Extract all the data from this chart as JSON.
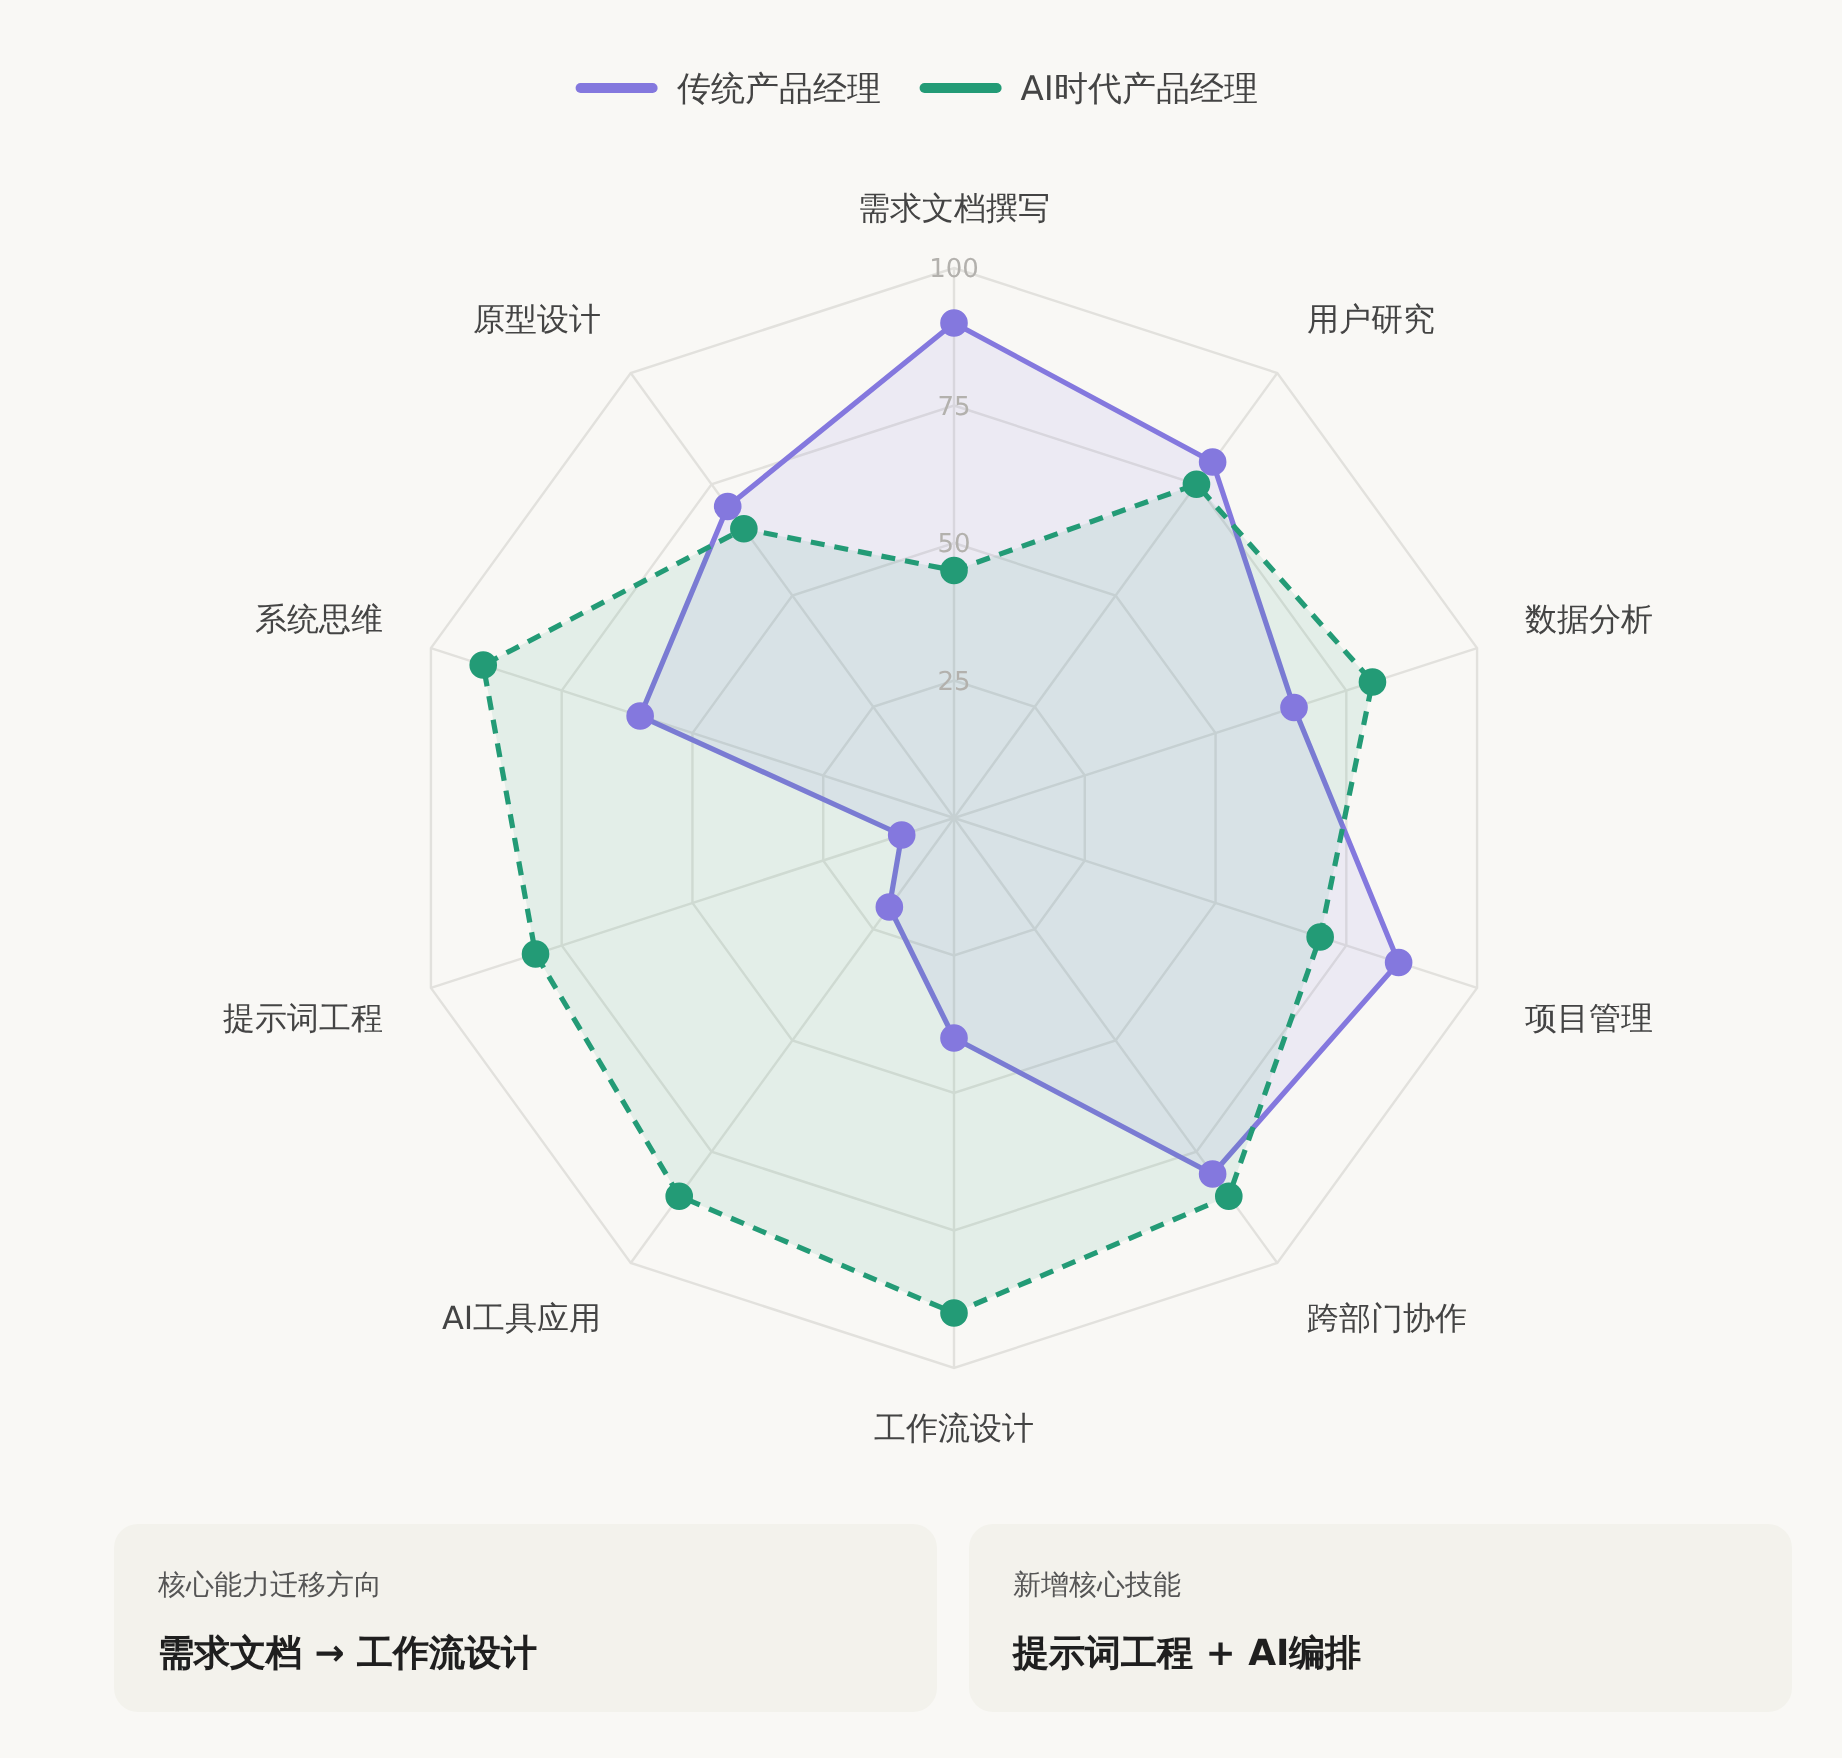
{
  "chart_data": {
    "type": "radar",
    "categories": [
      "需求文档撰写",
      "用户研究",
      "数据分析",
      "项目管理",
      "跨部门协作",
      "工作流设计",
      "AI工具应用",
      "提示词工程",
      "系统思维",
      "原型设计"
    ],
    "series": [
      {
        "name": "传统产品经理",
        "color": "#8478de",
        "line_style": "solid",
        "values": [
          90,
          80,
          65,
          85,
          80,
          40,
          20,
          10,
          60,
          70
        ]
      },
      {
        "name": "AI时代产品经理",
        "color": "#239b76",
        "line_style": "dashed",
        "values": [
          45,
          75,
          80,
          70,
          85,
          90,
          85,
          80,
          90,
          65
        ]
      }
    ],
    "ylim": [
      0,
      100
    ],
    "yticks": [
      25,
      50,
      75,
      100
    ],
    "grid": true,
    "legend": "top",
    "marker": "circle",
    "annotations": [
      "核心能力迁移方向",
      "需求文档 → 工作流设计",
      "新增核心技能",
      "提示词工程 + AI编排"
    ]
  }
}
